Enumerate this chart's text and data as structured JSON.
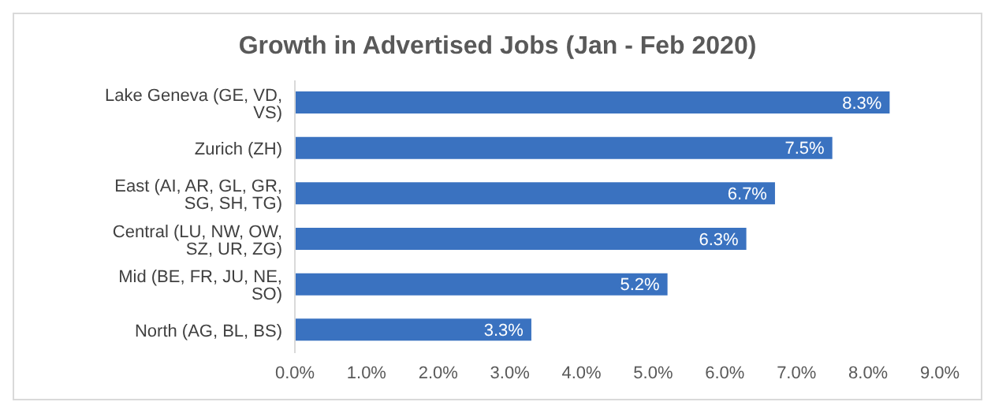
{
  "chart_data": {
    "type": "bar",
    "orientation": "horizontal",
    "title": "Growth in Advertised Jobs (Jan - Feb 2020)",
    "categories": [
      "Lake Geneva (GE, VD, VS)",
      "Zurich (ZH)",
      "East (AI, AR, GL, GR, SG, SH, TG)",
      "Central (LU, NW, OW, SZ, UR, ZG)",
      "Mid (BE, FR, JU, NE, SO)",
      "North (AG, BL, BS)"
    ],
    "values": [
      8.3,
      7.5,
      6.7,
      6.3,
      5.2,
      3.3
    ],
    "value_labels": [
      "8.3%",
      "7.5%",
      "6.7%",
      "6.3%",
      "5.2%",
      "3.3%"
    ],
    "color": "#3a72c0",
    "xlim": [
      0,
      9
    ],
    "xticks": [
      {
        "value": 0,
        "label": "0.0%"
      },
      {
        "value": 1,
        "label": "1.0%"
      },
      {
        "value": 2,
        "label": "2.0%"
      },
      {
        "value": 3,
        "label": "3.0%"
      },
      {
        "value": 4,
        "label": "4.0%"
      },
      {
        "value": 5,
        "label": "5.0%"
      },
      {
        "value": 6,
        "label": "6.0%"
      },
      {
        "value": 7,
        "label": "7.0%"
      },
      {
        "value": 8,
        "label": "8.0%"
      },
      {
        "value": 9,
        "label": "9.0%"
      }
    ]
  }
}
